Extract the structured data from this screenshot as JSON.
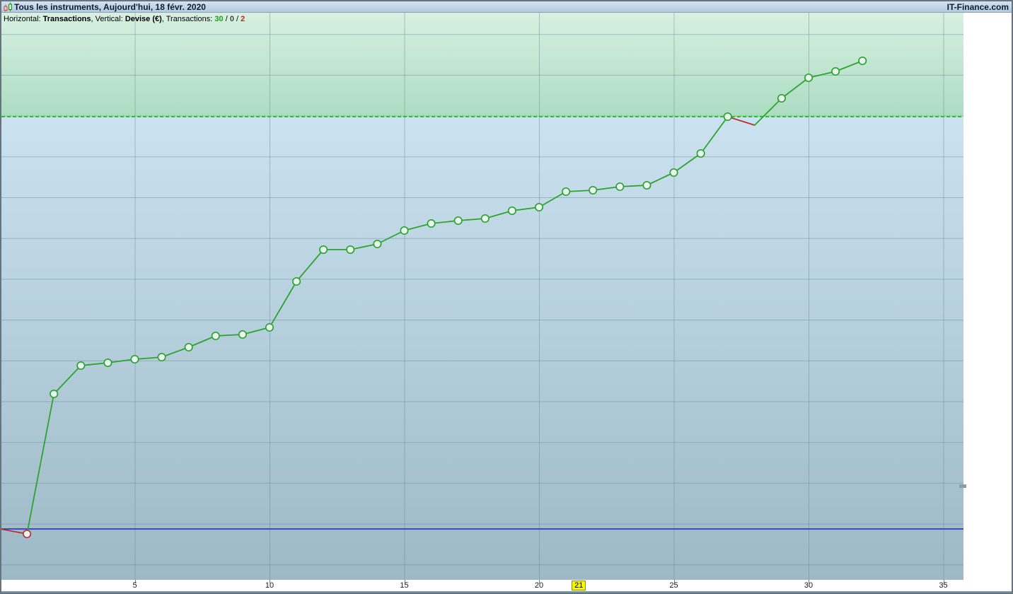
{
  "window": {
    "title": "Tous les instruments, Aujourd'hui, 18 févr. 2020",
    "brand": "IT-Finance.com",
    "icon": "candlestick-icon"
  },
  "info_bar": {
    "horizontal_label": "Horizontal: ",
    "horizontal_value": "Transactions",
    "sep": ", ",
    "vertical_label": "Vertical: ",
    "vertical_value": "Devise (€)",
    "transactions_label": "Transactions: ",
    "wins": "30",
    "slash": " / ",
    "neutral": "0",
    "losses": "2"
  },
  "colors": {
    "win_green": "#2da42d",
    "loss_red": "#b83030",
    "dashed_line_green": "#2ec22e",
    "baseline_blue": "#2323cc",
    "zone_green_top": "#d8f0e1",
    "zone_green_bottom": "#abdcc2",
    "zone_blue_top": "#cbe2f0",
    "zone_blue_bottom": "#9db9c6",
    "grid": "#69878f",
    "axis_tick": "#708089",
    "notch_gray": "#86a1ad",
    "highlight_yellow": "#f7f703",
    "marker_fill": "#e9f4f1",
    "stats_win": "#1f9e1f",
    "stats_neutral": "#444444",
    "stats_loss": "#cc2020"
  },
  "chart_data": {
    "type": "line",
    "title": "",
    "xlabel": "Transactions",
    "ylabel": "Devise (€)",
    "x": [
      0,
      1,
      2,
      3,
      4,
      5,
      6,
      7,
      8,
      9,
      10,
      11,
      12,
      13,
      14,
      15,
      16,
      17,
      18,
      19,
      20,
      21,
      22,
      23,
      24,
      25,
      26,
      27,
      28,
      29,
      30,
      31,
      32
    ],
    "values": [
      0,
      -7,
      191,
      231,
      235,
      240,
      243,
      257,
      273,
      275,
      285,
      350,
      395,
      395,
      403,
      422,
      432,
      436,
      439,
      450,
      455,
      477,
      479,
      484,
      486,
      504,
      531,
      583,
      571,
      609,
      638,
      647,
      662
    ],
    "value_unit": "relative units (vertical axis unlabeled, baseline = 0 €)",
    "x_range": [
      0,
      35.7
    ],
    "x_ticks": [
      5,
      10,
      15,
      20,
      25,
      30,
      35
    ],
    "highlighted_tick": "21",
    "baseline_value": 0,
    "dashed_level": 583,
    "loss_segment_end_indices": [
      1,
      28
    ],
    "marker_skip_indices": [
      0,
      28
    ],
    "loss_marker_indices": [
      1
    ],
    "grid": true,
    "legend_position": "none",
    "transactions_stats": {
      "wins": 30,
      "neutral": 0,
      "losses": 2
    }
  }
}
